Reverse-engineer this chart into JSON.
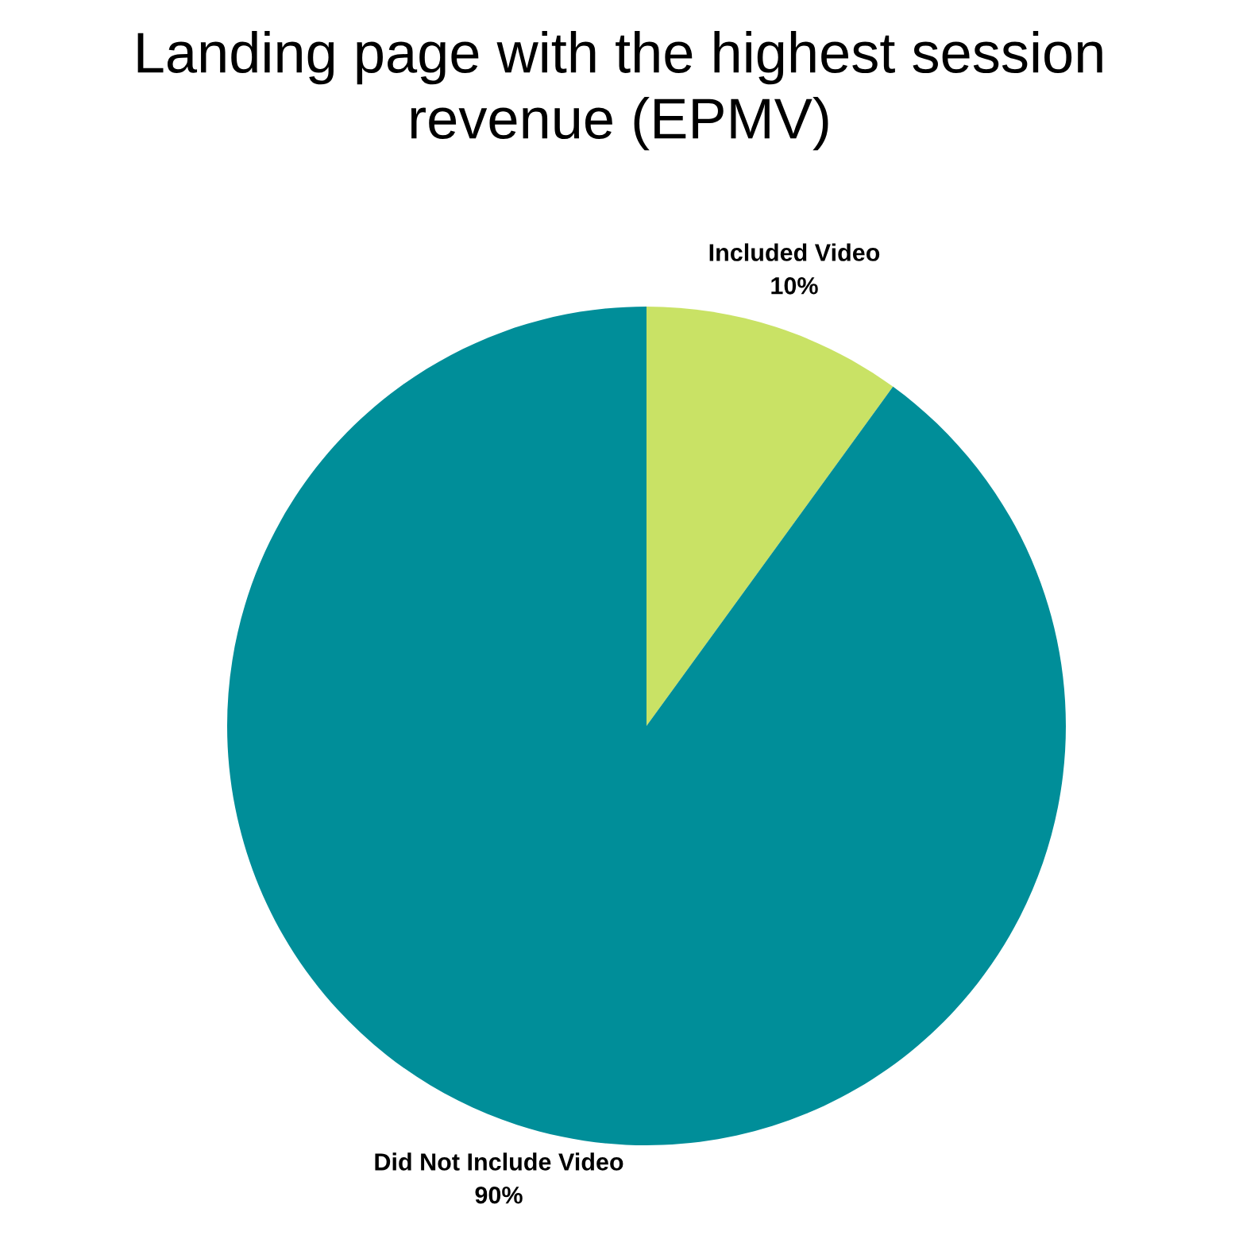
{
  "chart_data": {
    "type": "pie",
    "title": "Landing page with the highest session\nrevenue (EPMV)",
    "categories": [
      "Included Video",
      "Did Not Include Video"
    ],
    "values": [
      10,
      90
    ],
    "colors": [
      "#c9e265",
      "#008e99"
    ],
    "value_labels": [
      "10%",
      "90%"
    ],
    "legend": false
  }
}
